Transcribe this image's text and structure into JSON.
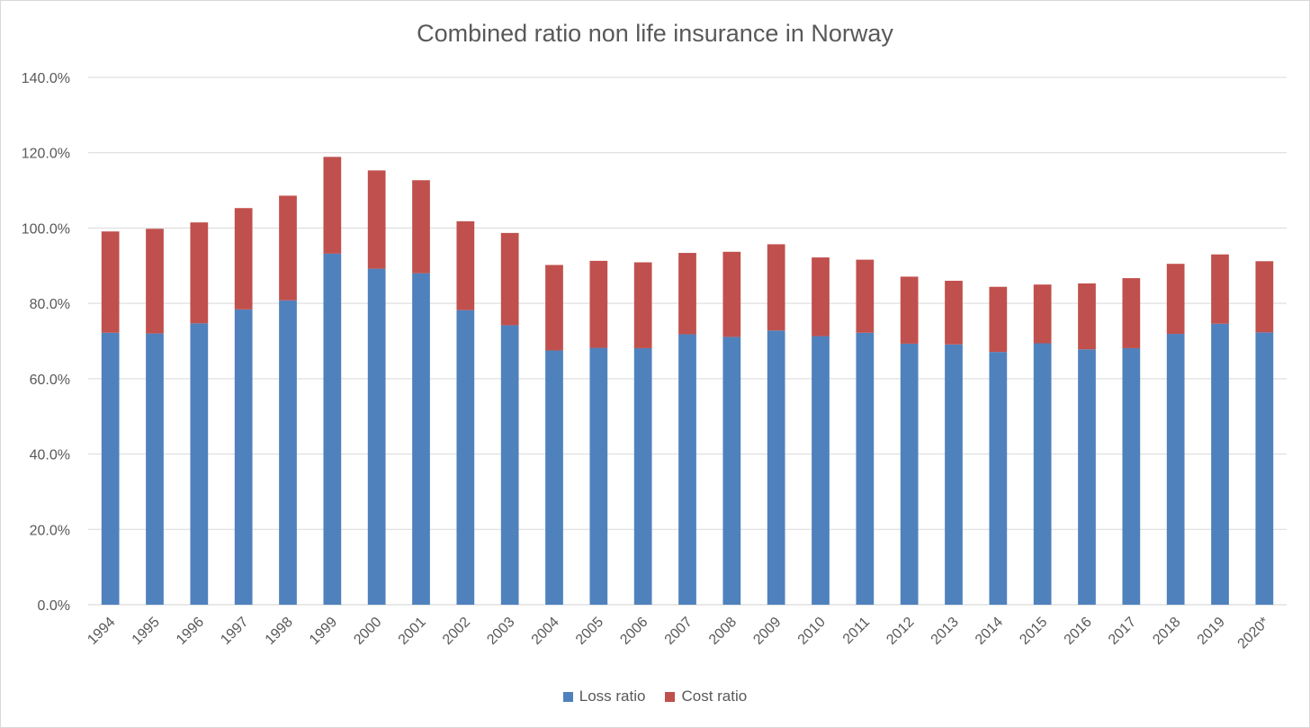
{
  "chart_data": {
    "type": "bar",
    "stacked": true,
    "title": "Combined ratio non life insurance in Norway",
    "xlabel": "",
    "ylabel": "",
    "ylim": [
      0,
      140
    ],
    "yticks": [
      "0.0%",
      "20.0%",
      "40.0%",
      "60.0%",
      "80.0%",
      "100.0%",
      "120.0%",
      "140.0%"
    ],
    "categories": [
      "1994",
      "1995",
      "1996",
      "1997",
      "1998",
      "1999",
      "2000",
      "2001",
      "2002",
      "2003",
      "2004",
      "2005",
      "2006",
      "2007",
      "2008",
      "2009",
      "2010",
      "2011",
      "2012",
      "2013",
      "2014",
      "2015",
      "2016",
      "2017",
      "2018",
      "2019",
      "2020*"
    ],
    "series": [
      {
        "name": "Loss ratio",
        "color": "#4f81bd",
        "values": [
          72.2,
          72.0,
          74.7,
          78.4,
          80.8,
          93.2,
          89.2,
          88.0,
          78.2,
          74.2,
          67.5,
          68.2,
          68.1,
          71.8,
          71.1,
          72.8,
          71.3,
          72.2,
          69.3,
          69.1,
          67.1,
          69.4,
          67.8,
          68.1,
          71.9,
          74.6,
          72.3
        ]
      },
      {
        "name": "Cost ratio",
        "color": "#c0504d",
        "values": [
          26.9,
          27.8,
          26.8,
          26.9,
          27.8,
          25.7,
          26.1,
          24.7,
          23.6,
          24.5,
          22.7,
          23.1,
          22.8,
          21.6,
          22.6,
          22.9,
          20.9,
          19.4,
          17.8,
          16.9,
          17.3,
          15.6,
          17.5,
          18.6,
          18.6,
          18.4,
          18.9
        ]
      }
    ],
    "legend_position": "bottom",
    "grid": true
  }
}
